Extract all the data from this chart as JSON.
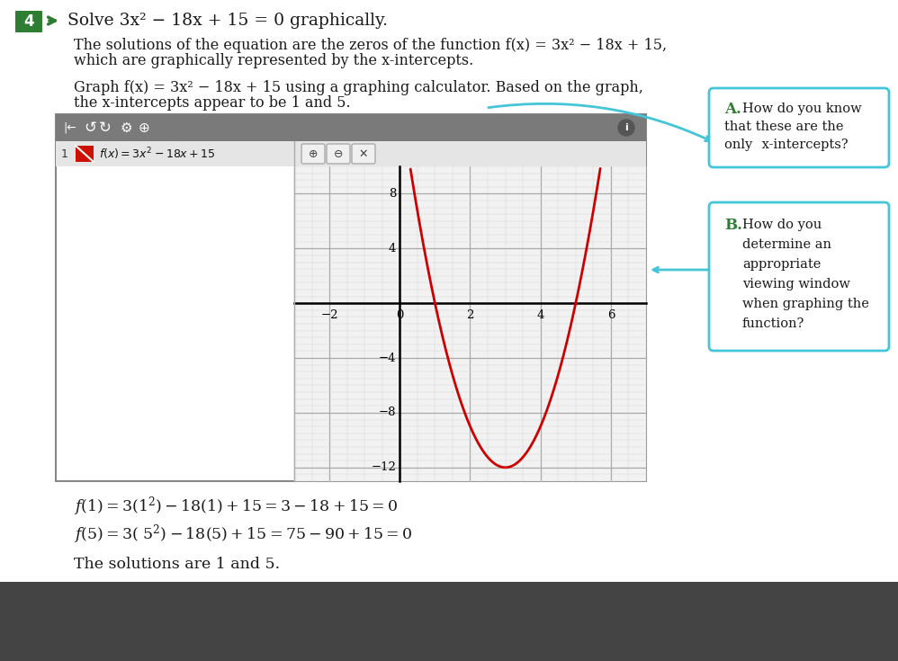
{
  "title_number": "4",
  "title_number_bg": "#2e7d32",
  "title_text": "Solve 3x² − 18x + 15 = 0 graphically.",
  "para1_line1": "The solutions of the equation are the zeros of the function f(x) = 3x² − 18x + 15,",
  "para1_line2": "which are graphically represented by the x-intercepts.",
  "para2_line1": "Graph f(x) = 3x² − 18x + 15 using a graphing calculator. Based on the graph,",
  "para2_line2": "the x-intercepts appear to be 1 and 5.",
  "box_A_lines": [
    "A.  How do you know",
    "that these are the",
    "only x-intercepts?"
  ],
  "box_B_title": "B.",
  "box_B_lines": [
    "How do you",
    "determine an",
    "appropriate",
    "viewing window",
    "when graphing the",
    "function?"
  ],
  "curve_color": "#cc0000",
  "curve_linewidth": 2.0,
  "xdata_min": -3,
  "xdata_max": 7,
  "ydata_min": -13,
  "ydata_max": 10,
  "xticks": [
    -2,
    0,
    2,
    4,
    6
  ],
  "yticks": [
    -12,
    -8,
    -4,
    4,
    8
  ],
  "calc_header_bg": "#7a7a7a",
  "box_border_color": "#45c5d8",
  "background_color": "#ffffff",
  "text_color": "#1a1a1a",
  "formula_line1": "f(1) = 3(1²) − 18(1) + 15 = 3 − 18 + 15 = 0",
  "formula_line2": "f(5) = 3( 5²) − 18(5) + 15 = 75 − 90 + 15 = 0",
  "solution_text": "The solutions are 1 and 5."
}
